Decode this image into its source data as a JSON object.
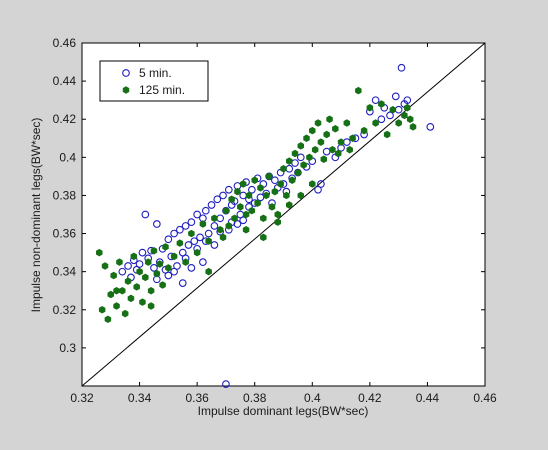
{
  "chart_data": {
    "type": "scatter",
    "xlabel": "Impulse dominant legs(BW*sec)",
    "ylabel": "Impulse non-dominant legs(BW*sec)",
    "xlim": [
      0.32,
      0.46
    ],
    "ylim": [
      0.28,
      0.46
    ],
    "xticks": [
      "0.32",
      "0.34",
      "0.36",
      "0.38",
      "0.4",
      "0.42",
      "0.44",
      "0.46"
    ],
    "yticks": [
      "0.3",
      "0.32",
      "0.34",
      "0.36",
      "0.38",
      "0.4",
      "0.42",
      "0.44",
      "0.46"
    ],
    "xtick_values": [
      0.32,
      0.34,
      0.36,
      0.38,
      0.4,
      0.42,
      0.44,
      0.46
    ],
    "ytick_values": [
      0.3,
      0.32,
      0.34,
      0.36,
      0.38,
      0.4,
      0.42,
      0.44,
      0.46
    ],
    "grid": false,
    "legend_position": "top-left",
    "reference_line": {
      "x": [
        0.32,
        0.46
      ],
      "y": [
        0.28,
        0.46
      ]
    },
    "series": [
      {
        "name": "5 min.",
        "marker": "open-circle",
        "color": "#1f1fbf",
        "points": [
          [
            0.334,
            0.34
          ],
          [
            0.336,
            0.343
          ],
          [
            0.338,
            0.346
          ],
          [
            0.339,
            0.341
          ],
          [
            0.34,
            0.344
          ],
          [
            0.341,
            0.35
          ],
          [
            0.342,
            0.37
          ],
          [
            0.343,
            0.347
          ],
          [
            0.344,
            0.351
          ],
          [
            0.345,
            0.342
          ],
          [
            0.346,
            0.365
          ],
          [
            0.347,
            0.345
          ],
          [
            0.348,
            0.352
          ],
          [
            0.349,
            0.341
          ],
          [
            0.35,
            0.357
          ],
          [
            0.351,
            0.348
          ],
          [
            0.352,
            0.36
          ],
          [
            0.353,
            0.343
          ],
          [
            0.354,
            0.362
          ],
          [
            0.355,
            0.35
          ],
          [
            0.356,
            0.364
          ],
          [
            0.357,
            0.354
          ],
          [
            0.358,
            0.366
          ],
          [
            0.359,
            0.356
          ],
          [
            0.36,
            0.37
          ],
          [
            0.361,
            0.358
          ],
          [
            0.362,
            0.368
          ],
          [
            0.363,
            0.372
          ],
          [
            0.364,
            0.36
          ],
          [
            0.365,
            0.375
          ],
          [
            0.366,
            0.364
          ],
          [
            0.367,
            0.378
          ],
          [
            0.368,
            0.368
          ],
          [
            0.369,
            0.38
          ],
          [
            0.37,
            0.372
          ],
          [
            0.371,
            0.383
          ],
          [
            0.372,
            0.366
          ],
          [
            0.373,
            0.377
          ],
          [
            0.374,
            0.385
          ],
          [
            0.375,
            0.37
          ],
          [
            0.376,
            0.38
          ],
          [
            0.377,
            0.387
          ],
          [
            0.378,
            0.374
          ],
          [
            0.379,
            0.383
          ],
          [
            0.38,
            0.376
          ],
          [
            0.381,
            0.389
          ],
          [
            0.382,
            0.379
          ],
          [
            0.383,
            0.386
          ],
          [
            0.384,
            0.381
          ],
          [
            0.385,
            0.39
          ],
          [
            0.386,
            0.376
          ],
          [
            0.387,
            0.388
          ],
          [
            0.388,
            0.384
          ],
          [
            0.389,
            0.392
          ],
          [
            0.39,
            0.386
          ],
          [
            0.391,
            0.382
          ],
          [
            0.392,
            0.394
          ],
          [
            0.393,
            0.389
          ],
          [
            0.394,
            0.397
          ],
          [
            0.395,
            0.392
          ],
          [
            0.396,
            0.4
          ],
          [
            0.398,
            0.395
          ],
          [
            0.4,
            0.398
          ],
          [
            0.402,
            0.383
          ],
          [
            0.403,
            0.386
          ],
          [
            0.405,
            0.403
          ],
          [
            0.408,
            0.4
          ],
          [
            0.41,
            0.405
          ],
          [
            0.412,
            0.408
          ],
          [
            0.415,
            0.41
          ],
          [
            0.418,
            0.412
          ],
          [
            0.42,
            0.424
          ],
          [
            0.422,
            0.43
          ],
          [
            0.424,
            0.42
          ],
          [
            0.425,
            0.426
          ],
          [
            0.427,
            0.422
          ],
          [
            0.429,
            0.432
          ],
          [
            0.43,
            0.425
          ],
          [
            0.431,
            0.447
          ],
          [
            0.432,
            0.428
          ],
          [
            0.433,
            0.43
          ],
          [
            0.441,
            0.416
          ],
          [
            0.37,
            0.281
          ],
          [
            0.355,
            0.334
          ],
          [
            0.352,
            0.34
          ],
          [
            0.358,
            0.342
          ],
          [
            0.362,
            0.345
          ],
          [
            0.366,
            0.354
          ],
          [
            0.368,
            0.361
          ],
          [
            0.371,
            0.362
          ],
          [
            0.374,
            0.365
          ],
          [
            0.376,
            0.367
          ],
          [
            0.346,
            0.336
          ],
          [
            0.35,
            0.338
          ],
          [
            0.337,
            0.337
          ],
          [
            0.356,
            0.347
          ],
          [
            0.36,
            0.352
          ],
          [
            0.363,
            0.356
          ],
          [
            0.372,
            0.375
          ],
          [
            0.378,
            0.378
          ]
        ]
      },
      {
        "name": "125 min.",
        "marker": "filled-hexagon",
        "color": "#167016",
        "points": [
          [
            0.326,
            0.35
          ],
          [
            0.327,
            0.32
          ],
          [
            0.328,
            0.343
          ],
          [
            0.329,
            0.315
          ],
          [
            0.33,
            0.328
          ],
          [
            0.331,
            0.338
          ],
          [
            0.332,
            0.322
          ],
          [
            0.333,
            0.345
          ],
          [
            0.334,
            0.33
          ],
          [
            0.335,
            0.318
          ],
          [
            0.336,
            0.335
          ],
          [
            0.337,
            0.326
          ],
          [
            0.338,
            0.348
          ],
          [
            0.339,
            0.332
          ],
          [
            0.34,
            0.34
          ],
          [
            0.341,
            0.324
          ],
          [
            0.342,
            0.337
          ],
          [
            0.343,
            0.345
          ],
          [
            0.344,
            0.33
          ],
          [
            0.345,
            0.351
          ],
          [
            0.346,
            0.339
          ],
          [
            0.347,
            0.344
          ],
          [
            0.348,
            0.333
          ],
          [
            0.349,
            0.353
          ],
          [
            0.35,
            0.342
          ],
          [
            0.352,
            0.348
          ],
          [
            0.354,
            0.355
          ],
          [
            0.356,
            0.345
          ],
          [
            0.358,
            0.36
          ],
          [
            0.36,
            0.35
          ],
          [
            0.362,
            0.365
          ],
          [
            0.364,
            0.356
          ],
          [
            0.366,
            0.368
          ],
          [
            0.368,
            0.362
          ],
          [
            0.37,
            0.372
          ],
          [
            0.371,
            0.364
          ],
          [
            0.372,
            0.378
          ],
          [
            0.373,
            0.368
          ],
          [
            0.374,
            0.382
          ],
          [
            0.375,
            0.374
          ],
          [
            0.376,
            0.386
          ],
          [
            0.377,
            0.37
          ],
          [
            0.378,
            0.38
          ],
          [
            0.379,
            0.372
          ],
          [
            0.38,
            0.388
          ],
          [
            0.381,
            0.376
          ],
          [
            0.382,
            0.384
          ],
          [
            0.383,
            0.368
          ],
          [
            0.384,
            0.38
          ],
          [
            0.385,
            0.39
          ],
          [
            0.386,
            0.374
          ],
          [
            0.387,
            0.382
          ],
          [
            0.388,
            0.37
          ],
          [
            0.389,
            0.386
          ],
          [
            0.39,
            0.394
          ],
          [
            0.391,
            0.38
          ],
          [
            0.392,
            0.398
          ],
          [
            0.393,
            0.388
          ],
          [
            0.394,
            0.402
          ],
          [
            0.395,
            0.392
          ],
          [
            0.396,
            0.406
          ],
          [
            0.397,
            0.396
          ],
          [
            0.398,
            0.41
          ],
          [
            0.399,
            0.4
          ],
          [
            0.4,
            0.414
          ],
          [
            0.401,
            0.404
          ],
          [
            0.402,
            0.418
          ],
          [
            0.403,
            0.408
          ],
          [
            0.404,
            0.399
          ],
          [
            0.405,
            0.412
          ],
          [
            0.406,
            0.42
          ],
          [
            0.407,
            0.404
          ],
          [
            0.408,
            0.415
          ],
          [
            0.41,
            0.408
          ],
          [
            0.412,
            0.418
          ],
          [
            0.414,
            0.41
          ],
          [
            0.416,
            0.435
          ],
          [
            0.418,
            0.414
          ],
          [
            0.42,
            0.426
          ],
          [
            0.422,
            0.418
          ],
          [
            0.424,
            0.428
          ],
          [
            0.426,
            0.412
          ],
          [
            0.428,
            0.425
          ],
          [
            0.43,
            0.418
          ],
          [
            0.432,
            0.422
          ],
          [
            0.433,
            0.426
          ],
          [
            0.434,
            0.42
          ],
          [
            0.435,
            0.416
          ],
          [
            0.413,
            0.404
          ],
          [
            0.409,
            0.402
          ],
          [
            0.383,
            0.358
          ],
          [
            0.377,
            0.362
          ],
          [
            0.369,
            0.358
          ],
          [
            0.364,
            0.34
          ],
          [
            0.392,
            0.375
          ],
          [
            0.396,
            0.38
          ],
          [
            0.388,
            0.366
          ],
          [
            0.4,
            0.386
          ],
          [
            0.344,
            0.322
          ],
          [
            0.332,
            0.33
          ]
        ]
      }
    ]
  }
}
